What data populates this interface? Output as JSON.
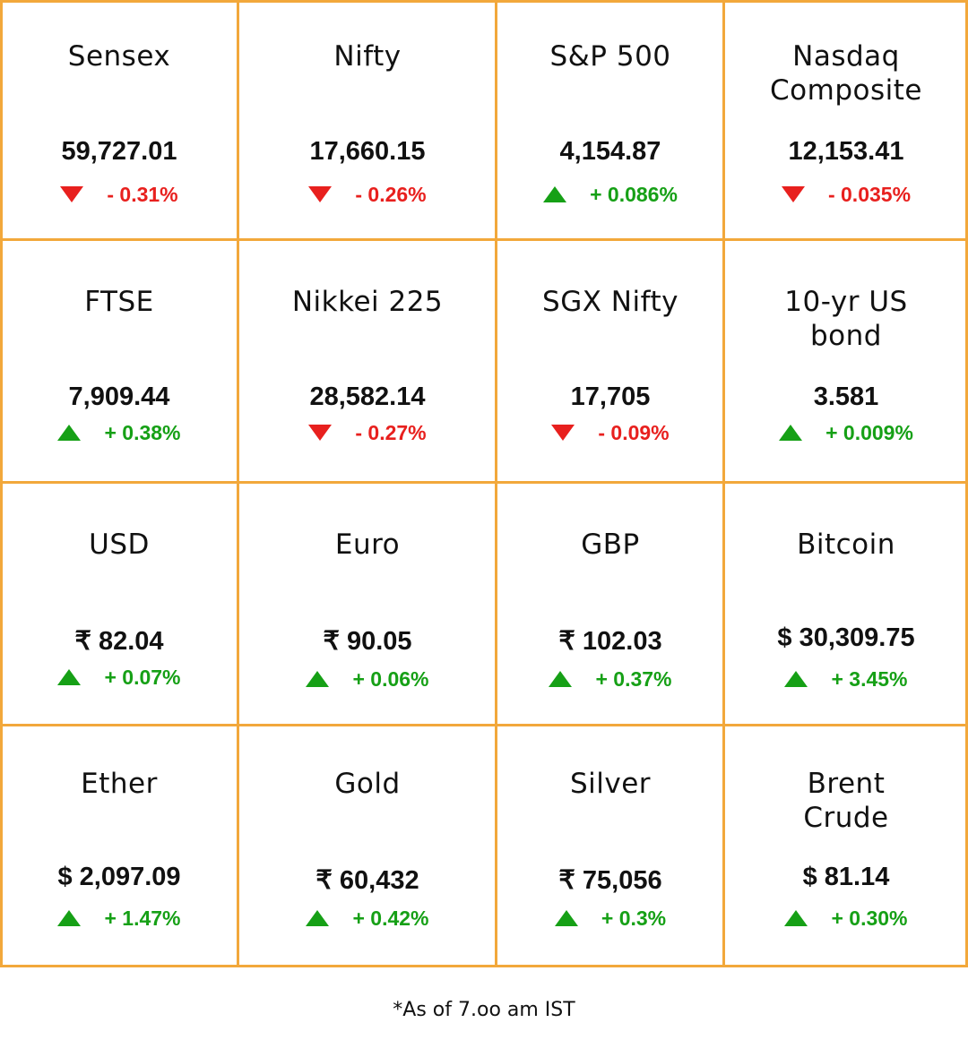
{
  "tiles": [
    {
      "name": "Sensex",
      "value": "59,727.01",
      "change": "- 0.31%",
      "direction": "down"
    },
    {
      "name": "Nifty",
      "value": "17,660.15",
      "change": "- 0.26%",
      "direction": "down"
    },
    {
      "name": "S&P 500",
      "value": "4,154.87",
      "change": "+ 0.086%",
      "direction": "up"
    },
    {
      "name": "Nasdaq\nComposite",
      "value": "12,153.41",
      "change": "- 0.035%",
      "direction": "down"
    },
    {
      "name": "FTSE",
      "value": "7,909.44",
      "change": "+ 0.38%",
      "direction": "up"
    },
    {
      "name": "Nikkei 225",
      "value": "28,582.14",
      "change": "- 0.27%",
      "direction": "down"
    },
    {
      "name": "SGX Nifty",
      "value": "17,705",
      "change": "- 0.09%",
      "direction": "down"
    },
    {
      "name": "10-yr US\nbond",
      "value": "3.581",
      "change": "+ 0.009%",
      "direction": "up"
    },
    {
      "name": "USD",
      "value": "₹ 82.04",
      "change": "+ 0.07%",
      "direction": "up"
    },
    {
      "name": "Euro",
      "value": "₹ 90.05",
      "change": "+ 0.06%",
      "direction": "up"
    },
    {
      "name": "GBP",
      "value": "₹ 102.03",
      "change": "+ 0.37%",
      "direction": "up"
    },
    {
      "name": "Bitcoin",
      "value": "$ 30,309.75",
      "change": "+ 3.45%",
      "direction": "up"
    },
    {
      "name": "Ether",
      "value": "$ 2,097.09",
      "change": "+ 1.47%",
      "direction": "up"
    },
    {
      "name": "Gold",
      "value": "₹ 60,432",
      "change": "+ 0.42%",
      "direction": "up"
    },
    {
      "name": "Silver",
      "value": "₹ 75,056",
      "change": "+ 0.3%",
      "direction": "up"
    },
    {
      "name": "Brent\nCrude",
      "value": "$ 81.14",
      "change": "+ 0.30%",
      "direction": "up"
    }
  ],
  "colors": {
    "border": "#f2a83b",
    "up": "#16a016",
    "down": "#e8201e"
  },
  "footnote": "*As of 7.oo am IST"
}
